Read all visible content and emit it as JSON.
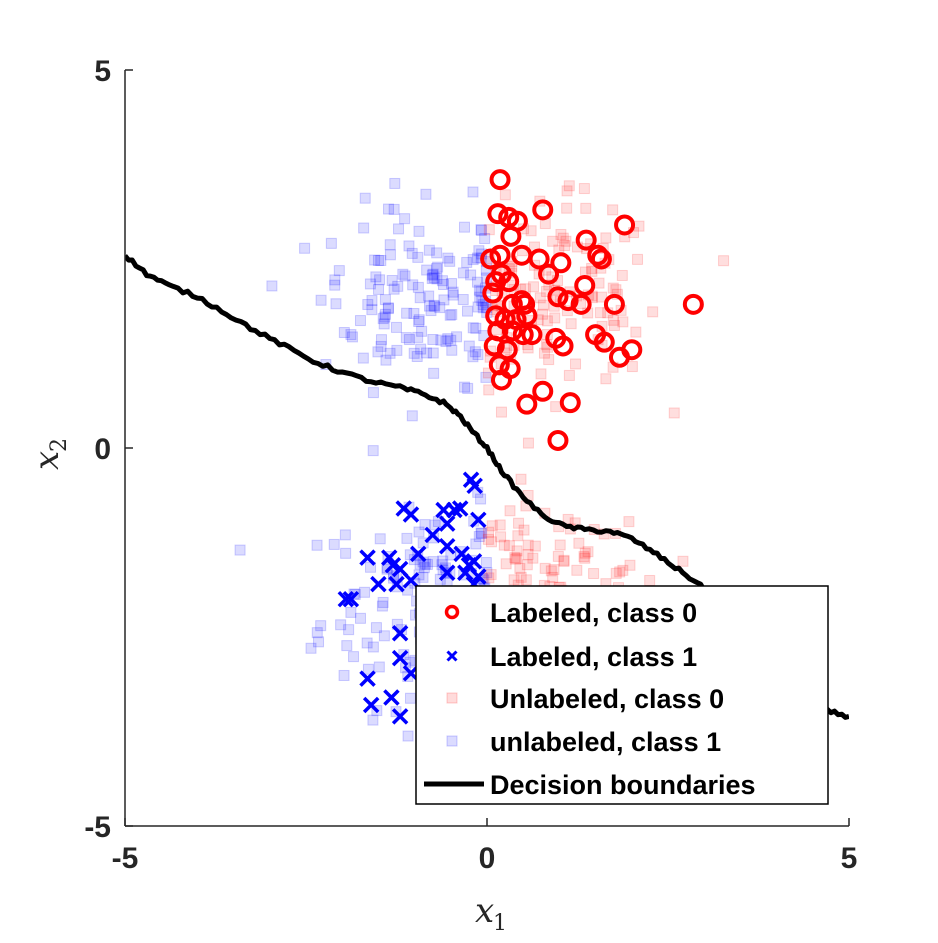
{
  "chart_data": {
    "type": "scatter",
    "title": "",
    "xlabel": "x",
    "xlabel_sub": "1",
    "ylabel": "x",
    "ylabel_sub": "2",
    "xlim": [
      -5,
      5
    ],
    "ylim": [
      -5,
      5
    ],
    "xticks": [
      -5,
      0,
      5
    ],
    "yticks": [
      -5,
      0,
      5
    ],
    "grid": false,
    "legend_position": "bottom-right",
    "series": [
      {
        "name": "Labeled, class 0",
        "marker": "circle",
        "color": "#ff0000",
        "points": [
          [
            0.18,
            3.55
          ],
          [
            0.15,
            3.1
          ],
          [
            0.3,
            3.05
          ],
          [
            0.42,
            3.0
          ],
          [
            0.77,
            3.15
          ],
          [
            0.33,
            2.8
          ],
          [
            1.9,
            2.95
          ],
          [
            1.37,
            2.75
          ],
          [
            0.18,
            2.55
          ],
          [
            0.48,
            2.55
          ],
          [
            0.72,
            2.5
          ],
          [
            1.02,
            2.45
          ],
          [
            1.53,
            2.55
          ],
          [
            1.58,
            2.5
          ],
          [
            0.05,
            2.5
          ],
          [
            0.12,
            2.2
          ],
          [
            0.2,
            2.3
          ],
          [
            0.3,
            2.2
          ],
          [
            0.85,
            2.3
          ],
          [
            1.35,
            2.15
          ],
          [
            0.08,
            2.05
          ],
          [
            0.35,
            1.9
          ],
          [
            0.48,
            1.95
          ],
          [
            0.52,
            1.9
          ],
          [
            0.98,
            2.0
          ],
          [
            1.12,
            1.95
          ],
          [
            1.3,
            1.9
          ],
          [
            1.76,
            1.9
          ],
          [
            2.85,
            1.9
          ],
          [
            0.12,
            1.75
          ],
          [
            0.25,
            1.7
          ],
          [
            0.4,
            1.7
          ],
          [
            0.55,
            1.75
          ],
          [
            0.15,
            1.55
          ],
          [
            0.35,
            1.55
          ],
          [
            0.5,
            1.5
          ],
          [
            0.62,
            1.5
          ],
          [
            0.95,
            1.45
          ],
          [
            1.5,
            1.5
          ],
          [
            1.62,
            1.4
          ],
          [
            0.1,
            1.35
          ],
          [
            0.28,
            1.3
          ],
          [
            1.05,
            1.35
          ],
          [
            1.83,
            1.2
          ],
          [
            2.0,
            1.3
          ],
          [
            0.17,
            1.1
          ],
          [
            0.32,
            1.05
          ],
          [
            0.2,
            0.9
          ],
          [
            0.77,
            0.75
          ],
          [
            0.55,
            0.58
          ],
          [
            1.15,
            0.6
          ],
          [
            0.98,
            0.1
          ]
        ]
      },
      {
        "name": "Labeled, class 1",
        "marker": "x",
        "color": "#0000ff",
        "points": [
          [
            -0.22,
            -0.42
          ],
          [
            -0.17,
            -0.5
          ],
          [
            -0.37,
            -0.8
          ],
          [
            -1.15,
            -0.8
          ],
          [
            -1.05,
            -0.88
          ],
          [
            -0.6,
            -0.82
          ],
          [
            -0.45,
            -0.82
          ],
          [
            -0.55,
            -1.0
          ],
          [
            -0.12,
            -0.95
          ],
          [
            -0.75,
            -1.15
          ],
          [
            -0.95,
            -1.4
          ],
          [
            -1.35,
            -1.45
          ],
          [
            -1.3,
            -1.55
          ],
          [
            -1.65,
            -1.45
          ],
          [
            -1.2,
            -1.6
          ],
          [
            -0.55,
            -1.3
          ],
          [
            -0.35,
            -1.4
          ],
          [
            -0.18,
            -1.5
          ],
          [
            -0.3,
            -1.65
          ],
          [
            -0.12,
            -1.7
          ],
          [
            -0.55,
            -1.65
          ],
          [
            -0.18,
            -1.8
          ],
          [
            -0.25,
            -1.55
          ],
          [
            -1.05,
            -1.75
          ],
          [
            -1.25,
            -1.8
          ],
          [
            -1.5,
            -1.8
          ],
          [
            -1.88,
            -2.0
          ],
          [
            -1.95,
            -2.0
          ],
          [
            -1.2,
            -2.45
          ],
          [
            -1.2,
            -2.78
          ],
          [
            -1.05,
            -2.98
          ],
          [
            -1.65,
            -3.05
          ],
          [
            -1.32,
            -3.3
          ],
          [
            -1.6,
            -3.4
          ],
          [
            -1.2,
            -3.55
          ]
        ]
      },
      {
        "name": "Unlabeled, class 0",
        "marker": "square",
        "color": "#ff0000",
        "point_count": 260
      },
      {
        "name": "unlabeled, class 1",
        "marker": "square",
        "color": "#0000ff",
        "point_count": 300
      },
      {
        "name": "Decision boundaries",
        "marker": "line",
        "color": "#000000",
        "points": [
          [
            -5.0,
            2.55
          ],
          [
            -4.7,
            2.3
          ],
          [
            -4.4,
            2.15
          ],
          [
            -4.0,
            2.0
          ],
          [
            -3.6,
            1.78
          ],
          [
            -3.2,
            1.55
          ],
          [
            -2.8,
            1.35
          ],
          [
            -2.4,
            1.15
          ],
          [
            -2.0,
            1.0
          ],
          [
            -1.6,
            0.88
          ],
          [
            -1.2,
            0.8
          ],
          [
            -0.9,
            0.72
          ],
          [
            -0.6,
            0.6
          ],
          [
            -0.4,
            0.45
          ],
          [
            -0.2,
            0.22
          ],
          [
            0.0,
            0.0
          ],
          [
            0.2,
            -0.3
          ],
          [
            0.45,
            -0.6
          ],
          [
            0.75,
            -0.88
          ],
          [
            1.05,
            -1.03
          ],
          [
            1.35,
            -1.08
          ],
          [
            1.7,
            -1.1
          ],
          [
            2.0,
            -1.2
          ],
          [
            2.3,
            -1.38
          ],
          [
            2.6,
            -1.58
          ],
          [
            2.9,
            -1.78
          ],
          [
            3.2,
            -2.05
          ],
          [
            3.5,
            -2.38
          ],
          [
            3.8,
            -2.72
          ],
          [
            4.1,
            -3.02
          ],
          [
            4.4,
            -3.28
          ],
          [
            4.7,
            -3.48
          ],
          [
            5.0,
            -3.55
          ]
        ]
      }
    ]
  }
}
